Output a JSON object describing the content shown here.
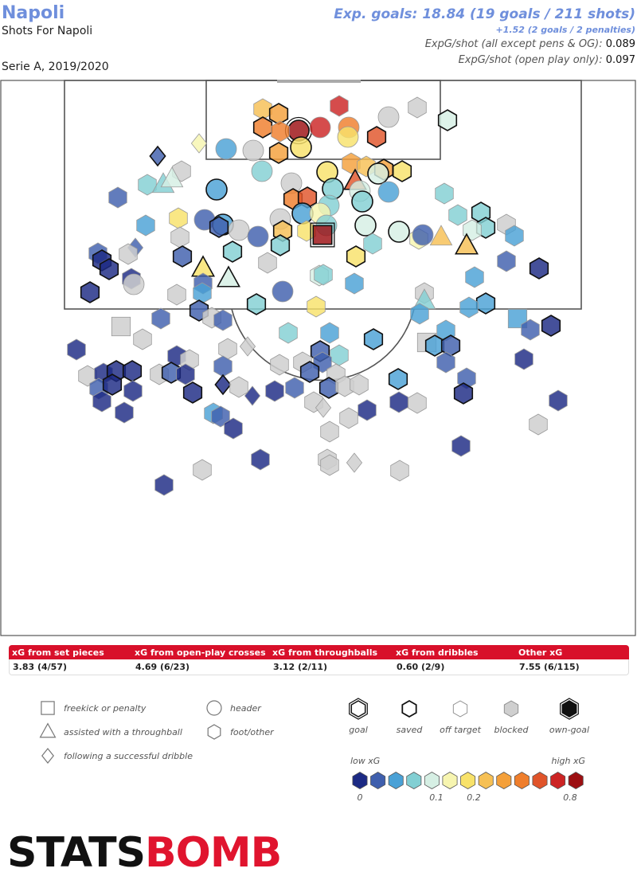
{
  "header": {
    "team": "Napoli",
    "subtitle": "Shots For Napoli",
    "season": "Serie A, 2019/2020",
    "xg_summary": "Exp. goals: 18.84 (19 goals / 211 shots)",
    "penalties_note": "+1.52 (2 goals / 2 penalties)",
    "expg_all_label": "ExpG/shot (all except pens & OG):",
    "expg_all_value": "0.089",
    "expg_open_label": "ExpG/shot (open play only):",
    "expg_open_value": "0.097"
  },
  "chart_data": {
    "type": "scatter",
    "title": "Shots For Napoli",
    "shape_key": {
      "s": "freekick or penalty",
      "t": "assisted with a throughball",
      "d": "following a successful dribble",
      "c": "header",
      "h": "foot/other"
    },
    "outcome_key": {
      "b": "blocked",
      "o": "off target",
      "s": "saved",
      "g": "goal"
    },
    "shot_fields": [
      "x",
      "y",
      "shape",
      "outcome",
      "xg"
    ],
    "shots": [
      [
        426,
        133,
        "h",
        "o",
        0.6
      ],
      [
        375,
        164,
        "c",
        "g",
        0.8
      ],
      [
        402,
        160,
        "c",
        "o",
        0.6
      ],
      [
        488,
        147,
        "c",
        "b",
        0
      ],
      [
        524,
        135,
        "h",
        "b",
        0
      ],
      [
        562,
        151,
        "h",
        "s",
        0.1
      ],
      [
        330,
        137,
        "h",
        "o",
        0.25
      ],
      [
        350,
        143,
        "h",
        "s",
        0.35
      ],
      [
        330,
        160,
        "h",
        "s",
        0.45
      ],
      [
        352,
        165,
        "h",
        "o",
        0.4
      ],
      [
        378,
        185,
        "c",
        "s",
        0.2
      ],
      [
        438,
        160,
        "c",
        "o",
        0.4
      ],
      [
        437,
        172,
        "c",
        "o",
        0.2
      ],
      [
        473,
        172,
        "h",
        "s",
        0.5
      ],
      [
        350,
        192,
        "h",
        "s",
        0.35
      ],
      [
        318,
        189,
        "c",
        "b",
        0
      ],
      [
        284,
        187,
        "c",
        "o",
        0.04
      ],
      [
        250,
        180,
        "d",
        "o",
        0.15
      ],
      [
        198,
        196,
        "d",
        "s",
        0.02
      ],
      [
        441,
        205,
        "h",
        "o",
        0.35
      ],
      [
        460,
        209,
        "h",
        "o",
        0.3
      ],
      [
        411,
        216,
        "c",
        "s",
        0.2
      ],
      [
        482,
        213,
        "h",
        "s",
        0.35
      ],
      [
        505,
        215,
        "h",
        "s",
        0.2
      ],
      [
        475,
        218,
        "c",
        "s",
        0.1
      ],
      [
        329,
        215,
        "c",
        "o",
        0.07
      ],
      [
        228,
        215,
        "h",
        "b",
        0
      ],
      [
        185,
        232,
        "h",
        "o",
        0.06
      ],
      [
        205,
        232,
        "t",
        "o",
        0.08
      ],
      [
        216,
        225,
        "t",
        "o",
        0.1
      ],
      [
        272,
        238,
        "c",
        "s",
        0.04
      ],
      [
        366,
        230,
        "c",
        "b",
        0
      ],
      [
        446,
        228,
        "t",
        "s",
        0.55
      ],
      [
        418,
        237,
        "c",
        "s",
        0.06
      ],
      [
        452,
        240,
        "c",
        "o",
        0.1
      ],
      [
        488,
        241,
        "c",
        "o",
        0.04
      ],
      [
        368,
        250,
        "h",
        "s",
        0.45
      ],
      [
        386,
        248,
        "h",
        "s",
        0.55
      ],
      [
        455,
        253,
        "c",
        "s",
        0.08
      ],
      [
        413,
        258,
        "c",
        "o",
        0.07
      ],
      [
        558,
        243,
        "h",
        "o",
        0.08
      ],
      [
        148,
        248,
        "h",
        "o",
        0.02
      ],
      [
        380,
        268,
        "c",
        "s",
        0.04
      ],
      [
        352,
        275,
        "c",
        "b",
        0
      ],
      [
        402,
        268,
        "c",
        "o",
        0.15
      ],
      [
        410,
        283,
        "c",
        "o",
        0.08
      ],
      [
        459,
        283,
        "c",
        "s",
        0.1
      ],
      [
        501,
        291,
        "c",
        "s",
        0.1
      ],
      [
        526,
        300,
        "h",
        "o",
        0.15
      ],
      [
        531,
        295,
        "c",
        "o",
        0.03
      ],
      [
        554,
        298,
        "t",
        "o",
        0.25
      ],
      [
        575,
        270,
        "h",
        "o",
        0.08
      ],
      [
        604,
        267,
        "h",
        "s",
        0.08
      ],
      [
        610,
        286,
        "h",
        "s",
        0.08
      ],
      [
        593,
        289,
        "h",
        "o",
        0.1
      ],
      [
        636,
        282,
        "h",
        "b",
        0
      ],
      [
        646,
        296,
        "h",
        "o",
        0.04
      ],
      [
        257,
        276,
        "c",
        "o",
        0.02
      ],
      [
        280,
        282,
        "c",
        "s",
        0.04
      ],
      [
        300,
        289,
        "c",
        "b",
        0
      ],
      [
        275,
        285,
        "h",
        "s",
        0.02
      ],
      [
        324,
        297,
        "c",
        "o",
        0.02
      ],
      [
        355,
        290,
        "h",
        "s",
        0.25
      ],
      [
        385,
        290,
        "h",
        "o",
        0.2
      ],
      [
        405,
        295,
        "s",
        "g",
        0.8
      ],
      [
        352,
        308,
        "h",
        "s",
        0.06
      ],
      [
        468,
        306,
        "h",
        "o",
        0.07
      ],
      [
        586,
        309,
        "t",
        "s",
        0.3
      ],
      [
        224,
        274,
        "h",
        "o",
        0.2
      ],
      [
        226,
        298,
        "h",
        "b",
        0
      ],
      [
        183,
        283,
        "h",
        "o",
        0.04
      ],
      [
        170,
        311,
        "d",
        "o",
        0.02
      ],
      [
        161,
        319,
        "h",
        "b",
        0
      ],
      [
        123,
        318,
        "h",
        "o",
        0.02
      ],
      [
        128,
        327,
        "h",
        "s",
        0.01
      ],
      [
        137,
        338,
        "h",
        "s",
        0.01
      ],
      [
        165,
        350,
        "h",
        "o",
        0.01
      ],
      [
        168,
        357,
        "c",
        "b",
        0
      ],
      [
        229,
        322,
        "h",
        "s",
        0.03
      ],
      [
        255,
        337,
        "t",
        "s",
        0.2
      ],
      [
        287,
        350,
        "t",
        "s",
        0.1
      ],
      [
        292,
        316,
        "h",
        "s",
        0.07
      ],
      [
        336,
        330,
        "h",
        "b",
        0
      ],
      [
        447,
        322,
        "h",
        "s",
        0.2
      ],
      [
        401,
        346,
        "h",
        "o",
        0.1
      ],
      [
        406,
        345,
        "h",
        "o",
        0.07
      ],
      [
        445,
        356,
        "h",
        "o",
        0.04
      ],
      [
        355,
        366,
        "c",
        "o",
        0.03
      ],
      [
        255,
        356,
        "h",
        "o",
        0.03
      ],
      [
        596,
        348,
        "h",
        "o",
        0.04
      ],
      [
        636,
        328,
        "h",
        "o",
        0.02
      ],
      [
        677,
        337,
        "h",
        "s",
        0.01
      ],
      [
        113,
        367,
        "h",
        "s",
        0.01
      ],
      [
        222,
        370,
        "h",
        "b",
        0
      ],
      [
        254,
        368,
        "h",
        "o",
        0.04
      ],
      [
        322,
        382,
        "h",
        "s",
        0.08
      ],
      [
        397,
        385,
        "h",
        "o",
        0.18
      ],
      [
        533,
        368,
        "h",
        "b",
        0
      ],
      [
        533,
        378,
        "t",
        "o",
        0.06
      ],
      [
        250,
        390,
        "h",
        "s",
        0.03
      ],
      [
        266,
        399,
        "h",
        "b",
        0
      ],
      [
        280,
        402,
        "h",
        "o",
        0.03
      ],
      [
        202,
        400,
        "h",
        "o",
        0.02
      ],
      [
        152,
        410,
        "s",
        "b",
        0
      ],
      [
        179,
        426,
        "h",
        "b",
        0
      ],
      [
        610,
        381,
        "h",
        "s",
        0.04
      ],
      [
        589,
        386,
        "h",
        "o",
        0.04
      ],
      [
        527,
        394,
        "h",
        "o",
        0.04
      ],
      [
        650,
        400,
        "s",
        "o",
        0.05
      ],
      [
        666,
        414,
        "h",
        "o",
        0.03
      ],
      [
        692,
        409,
        "h",
        "s",
        0.01
      ],
      [
        362,
        418,
        "h",
        "o",
        0.06
      ],
      [
        414,
        418,
        "h",
        "o",
        0.04
      ],
      [
        469,
        426,
        "h",
        "s",
        0.04
      ],
      [
        311,
        435,
        "d",
        "b",
        0
      ],
      [
        286,
        438,
        "h",
        "b",
        0
      ],
      [
        402,
        441,
        "h",
        "s",
        0.02
      ],
      [
        426,
        446,
        "h",
        "o",
        0.06
      ],
      [
        536,
        430,
        "s",
        "b",
        0
      ],
      [
        560,
        415,
        "h",
        "o",
        0.04
      ],
      [
        546,
        434,
        "h",
        "s",
        0.04
      ],
      [
        566,
        434,
        "h",
        "s",
        0.02
      ],
      [
        96,
        439,
        "h",
        "o",
        0.01
      ],
      [
        222,
        447,
        "h",
        "o",
        0.01
      ],
      [
        238,
        452,
        "h",
        "b",
        0
      ],
      [
        658,
        451,
        "h",
        "o",
        0.01
      ],
      [
        560,
        455,
        "h",
        "o",
        0.02
      ],
      [
        351,
        458,
        "h",
        "b",
        0
      ],
      [
        380,
        455,
        "h",
        "b",
        0
      ],
      [
        405,
        455,
        "h",
        "o",
        0.03
      ],
      [
        422,
        470,
        "h",
        "b",
        0
      ],
      [
        389,
        467,
        "h",
        "s",
        0.02
      ],
      [
        413,
        487,
        "h",
        "s",
        0.03
      ],
      [
        433,
        485,
        "h",
        "b",
        0
      ],
      [
        451,
        483,
        "h",
        "b",
        0
      ],
      [
        500,
        476,
        "h",
        "s",
        0.04
      ],
      [
        586,
        475,
        "h",
        "o",
        0.02
      ],
      [
        582,
        494,
        "h",
        "s",
        0.01
      ],
      [
        110,
        472,
        "h",
        "b",
        0
      ],
      [
        130,
        469,
        "h",
        "o",
        0.01
      ],
      [
        146,
        466,
        "h",
        "s",
        0.01
      ],
      [
        166,
        466,
        "h",
        "s",
        0.01
      ],
      [
        124,
        488,
        "h",
        "o",
        0.02
      ],
      [
        141,
        483,
        "h",
        "s",
        0.01
      ],
      [
        167,
        491,
        "h",
        "o",
        0.01
      ],
      [
        128,
        504,
        "h",
        "o",
        0.01
      ],
      [
        156,
        518,
        "h",
        "o",
        0.01
      ],
      [
        200,
        470,
        "h",
        "b",
        0
      ],
      [
        215,
        468,
        "h",
        "s",
        0.02
      ],
      [
        233,
        470,
        "h",
        "o",
        0.01
      ],
      [
        242,
        493,
        "h",
        "s",
        0.01
      ],
      [
        280,
        460,
        "h",
        "o",
        0.02
      ],
      [
        280,
        483,
        "d",
        "s",
        0.01
      ],
      [
        300,
        486,
        "h",
        "b",
        0
      ],
      [
        317,
        497,
        "d",
        "o",
        0.01
      ],
      [
        345,
        491,
        "h",
        "o",
        0.01
      ],
      [
        370,
        487,
        "h",
        "o",
        0.02
      ],
      [
        394,
        505,
        "h",
        "b",
        0
      ],
      [
        406,
        512,
        "d",
        "b",
        0
      ],
      [
        438,
        525,
        "h",
        "b",
        0
      ],
      [
        461,
        515,
        "h",
        "o",
        0.01
      ],
      [
        501,
        505,
        "h",
        "o",
        0.01
      ],
      [
        524,
        506,
        "h",
        "b",
        0
      ],
      [
        268,
        519,
        "h",
        "o",
        0.04
      ],
      [
        277,
        523,
        "h",
        "o",
        0.02
      ],
      [
        293,
        538,
        "h",
        "o",
        0.01
      ],
      [
        414,
        542,
        "h",
        "b",
        0
      ],
      [
        701,
        503,
        "h",
        "o",
        0.01
      ],
      [
        676,
        533,
        "h",
        "b",
        0
      ],
      [
        579,
        560,
        "h",
        "o",
        0.01
      ],
      [
        327,
        577,
        "h",
        "o",
        0.01
      ],
      [
        411,
        577,
        "h",
        "b",
        0
      ],
      [
        445,
        581,
        "d",
        "b",
        0
      ],
      [
        414,
        584,
        "h",
        "b",
        0
      ],
      [
        254,
        590,
        "h",
        "b",
        0
      ],
      [
        502,
        591,
        "h",
        "b",
        0
      ],
      [
        206,
        609,
        "h",
        "o",
        0.01
      ]
    ],
    "table": [
      {
        "label": "xG from set pieces",
        "value": "3.83 (4/57)"
      },
      {
        "label": "xG from open-play crosses",
        "value": "4.69 (6/23)"
      },
      {
        "label": "xG from throughballs",
        "value": "3.12 (2/11)"
      },
      {
        "label": "xG from dribbles",
        "value": "0.60 (2/9)"
      },
      {
        "label": "Other xG",
        "value": "7.55 (6/115)"
      }
    ],
    "legend": {
      "shapes": [
        "freekick or penalty",
        "assisted with a throughball",
        "following a successful dribble",
        "header",
        "foot/other"
      ],
      "outcomes": [
        "goal",
        "saved",
        "off target",
        "blocked",
        "own-goal"
      ],
      "scale_low": "low xG",
      "scale_high": "high xG",
      "scale_ticks": [
        "0",
        "0.1",
        "0.2",
        "0.8"
      ],
      "scale_colors": [
        "#1c2a84",
        "#3f5fad",
        "#4aa1d6",
        "#82cfd3",
        "#d6efe4",
        "#f7f5b0",
        "#f8e26a",
        "#f6c054",
        "#f4a03a",
        "#ef7e2c",
        "#e0542a",
        "#cc2424",
        "#9c0f12"
      ]
    }
  },
  "logo": {
    "part1": "STATS",
    "part2": "BOMB"
  }
}
